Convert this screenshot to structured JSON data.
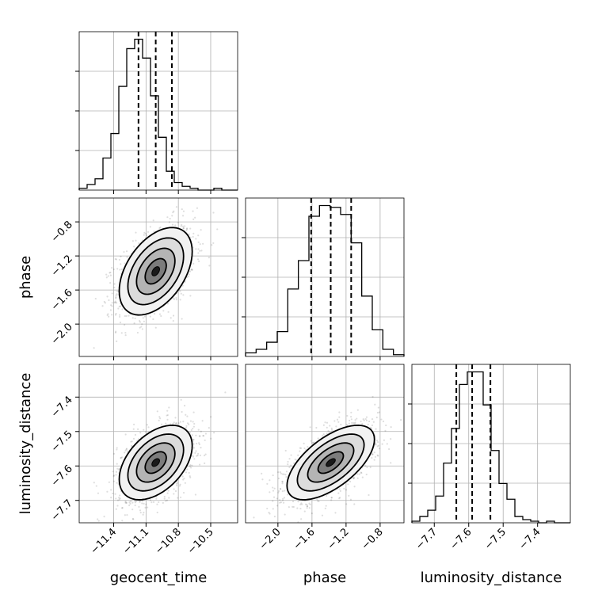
{
  "chart_data": {
    "type": "corner",
    "parameters": [
      "geocent_time",
      "phase",
      "luminosity_distance"
    ],
    "axis_labels": [
      "geocent_time",
      "phase",
      "luminosity_distance"
    ],
    "ranges": {
      "geocent_time": [
        -11.72,
        -10.25
      ],
      "phase": [
        -2.38,
        -0.52
      ],
      "luminosity_distance": [
        -7.765,
        -7.305
      ]
    },
    "ticks": {
      "geocent_time": [
        -11.4,
        -11.1,
        -10.8,
        -10.5
      ],
      "phase": [
        -2.0,
        -1.6,
        -1.2,
        -0.8
      ],
      "luminosity_distance": [
        -7.7,
        -7.6,
        -7.5,
        -7.4
      ]
    },
    "tick_labels": {
      "geocent_time": [
        "−11.4",
        "−11.1",
        "−10.8",
        "−10.5"
      ],
      "phase": [
        "−2.0",
        "−1.6",
        "−1.2",
        "−0.8"
      ],
      "luminosity_distance": [
        "−7.7",
        "−7.6",
        "−7.5",
        "−7.4"
      ]
    },
    "quantiles": {
      "geocent_time": [
        -11.17,
        -11.01,
        -10.86
      ],
      "phase": [
        -1.61,
        -1.38,
        -1.14
      ],
      "luminosity_distance": [
        -7.636,
        -7.59,
        -7.537
      ]
    },
    "histograms": {
      "geocent_time": {
        "bins": [
          -11.72,
          -10.25
        ],
        "counts": [
          1,
          3,
          6,
          17,
          30,
          55,
          75,
          80,
          70,
          50,
          28,
          10,
          4,
          2,
          1,
          0,
          0,
          1,
          0,
          0
        ]
      },
      "phase": {
        "bins": [
          -2.38,
          -0.52
        ],
        "counts": [
          2,
          4,
          8,
          14,
          38,
          54,
          79,
          85,
          84,
          80,
          64,
          34,
          15,
          4,
          1
        ]
      },
      "luminosity_distance": {
        "bins": [
          -7.765,
          -7.305
        ],
        "counts": [
          1,
          4,
          8,
          17,
          38,
          60,
          88,
          96,
          96,
          75,
          46,
          25,
          15,
          4,
          2,
          1,
          0,
          1,
          0,
          0
        ]
      }
    },
    "pairs": [
      {
        "x": "geocent_time",
        "y": "phase",
        "correlation": 0.45
      },
      {
        "x": "geocent_time",
        "y": "luminosity_distance",
        "correlation": 0.45
      },
      {
        "x": "phase",
        "y": "luminosity_distance",
        "correlation": 0.62
      }
    ],
    "grid": true
  }
}
